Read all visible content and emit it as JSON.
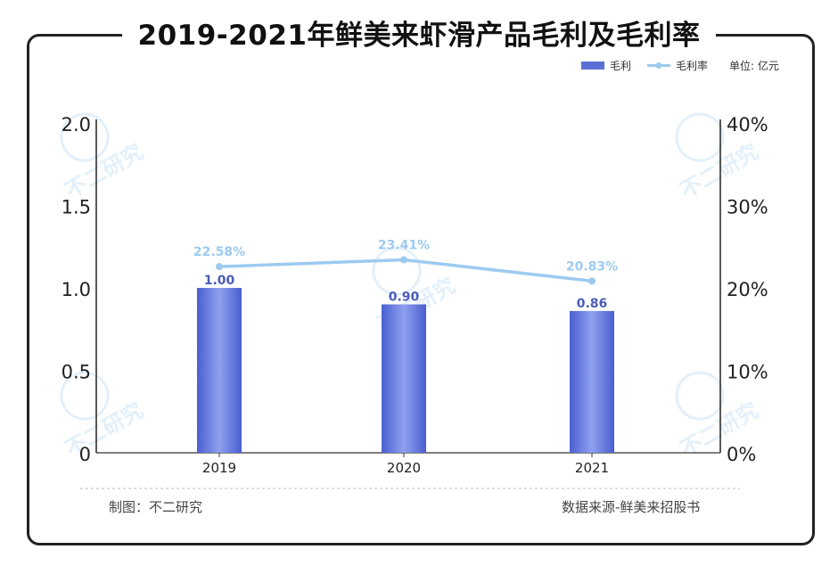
{
  "chart_data": {
    "type": "bar",
    "title": "2019-2021年鲜美来虾滑产品毛利及毛利率",
    "unit_label": "单位: 亿元",
    "categories": [
      "2019",
      "2020",
      "2021"
    ],
    "series": [
      {
        "name": "毛利",
        "type": "bar",
        "axis": "left",
        "values": [
          1.0,
          0.9,
          0.86
        ],
        "labels": [
          "1.00",
          "0.90",
          "0.86"
        ],
        "color": "#5a6fd6"
      },
      {
        "name": "毛利率",
        "type": "line",
        "axis": "right",
        "values": [
          22.58,
          23.41,
          20.83
        ],
        "labels": [
          "22.58%",
          "23.41%",
          "20.83%"
        ],
        "color": "#9ccaf0"
      }
    ],
    "left_axis": {
      "ylim": [
        0,
        2.0
      ],
      "ticks": [
        "0",
        "0.5",
        "1.0",
        "1.5",
        "2.0"
      ],
      "tick_values": [
        0,
        0.5,
        1.0,
        1.5,
        2.0
      ]
    },
    "right_axis": {
      "ylim": [
        0,
        40
      ],
      "ticks": [
        "0%",
        "10%",
        "20%",
        "30%",
        "40%"
      ],
      "tick_values": [
        0,
        10,
        20,
        30,
        40
      ]
    },
    "legend_position": "top-right",
    "grid": false
  },
  "footer": {
    "left": "制图：不二研究",
    "right": "数据来源-鲜美来招股书"
  },
  "watermark": "不二研究"
}
